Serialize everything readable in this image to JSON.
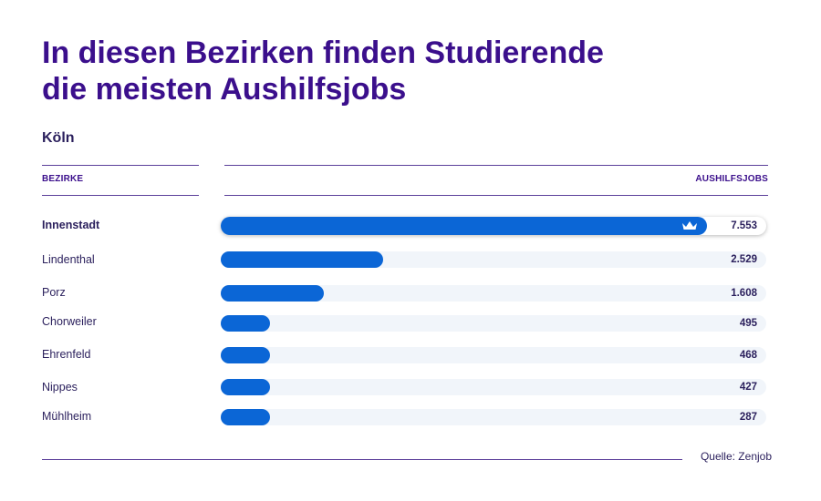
{
  "title_line1": "In diesen Bezirken finden Studierende",
  "title_line2": "die meisten Aushilfsjobs",
  "subtitle": "Köln",
  "source": "Quelle: Zenjob",
  "colors": {
    "title": "#3b0f8c",
    "bar": "#0b66d6",
    "track": "#f1f5fa",
    "text": "#2a1f5c"
  },
  "chart_data": {
    "type": "bar",
    "orientation": "horizontal",
    "xlabel": "BEZIRKE",
    "ylabel": "AUSHILFSJOBS",
    "categories": [
      "Innenstadt",
      "Lindenthal",
      "Porz",
      "Chorweiler",
      "Ehrenfeld",
      "Nippes",
      "Mühlheim"
    ],
    "values": [
      7553,
      2529,
      1608,
      495,
      468,
      427,
      287
    ],
    "value_labels": [
      "7.553",
      "2.529",
      "1.608",
      "495",
      "468",
      "427",
      "287"
    ],
    "highlight": "crown-icon",
    "grid": false
  }
}
